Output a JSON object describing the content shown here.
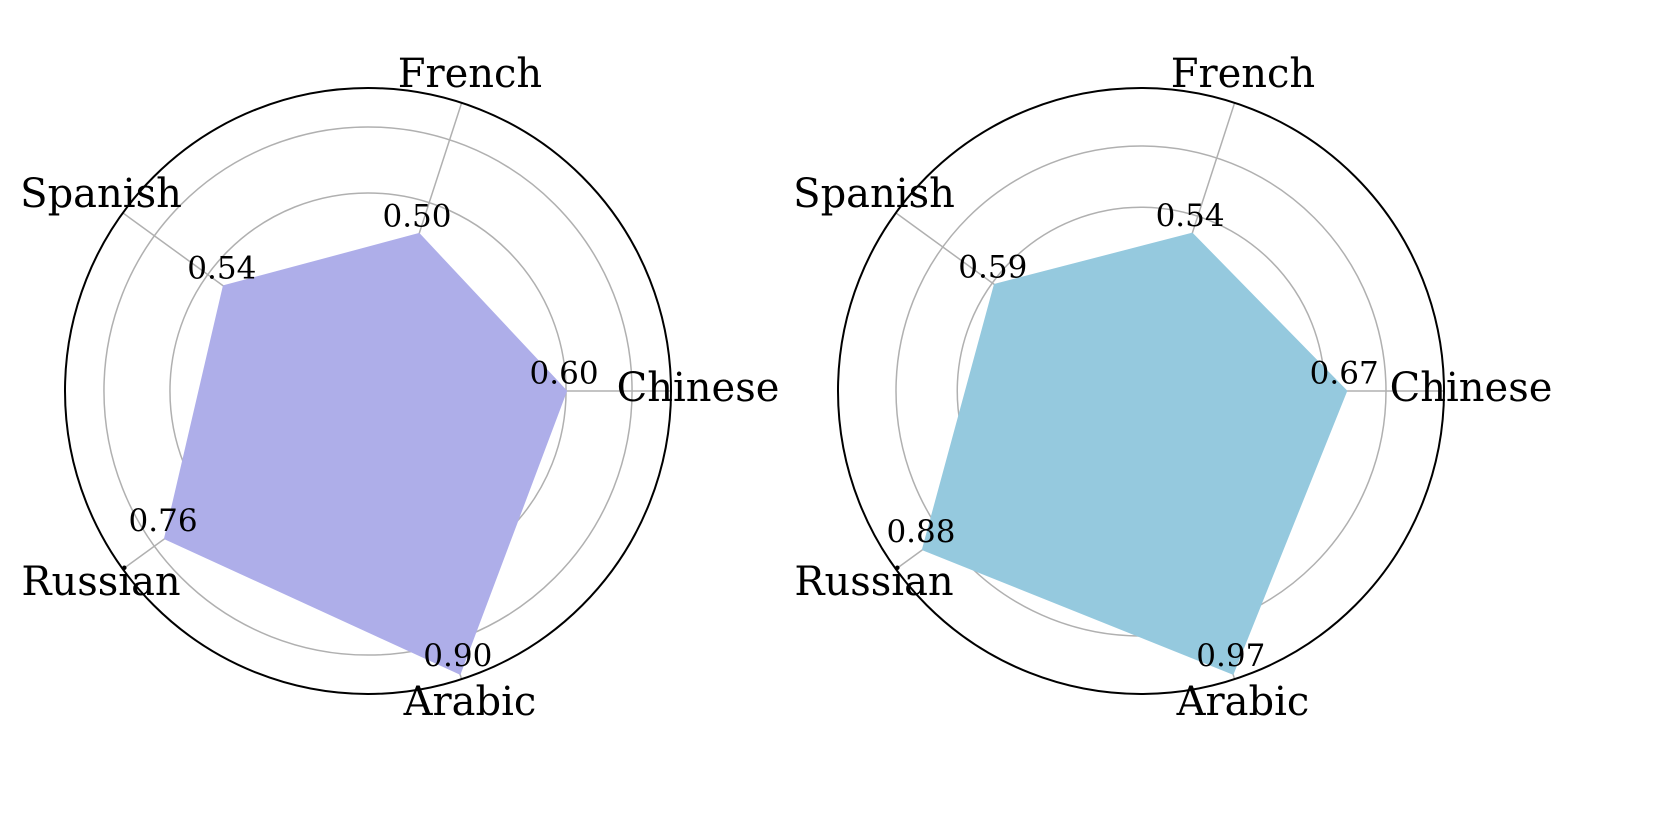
{
  "chart_data": [
    {
      "type": "radar",
      "categories": [
        "Chinese",
        "French",
        "Spanish",
        "Russian",
        "Arabic"
      ],
      "values": [
        0.6,
        0.5,
        0.54,
        0.76,
        0.9
      ],
      "value_labels": [
        "0.60",
        "0.50",
        "0.54",
        "0.76",
        "0.90"
      ],
      "color": "#bbbbfb",
      "ylim": [
        0,
        0.918
      ],
      "yticks": [
        0.2,
        0.4,
        0.6,
        0.8
      ],
      "grid": true
    },
    {
      "type": "radar",
      "categories": [
        "Chinese",
        "French",
        "Spanish",
        "Russian",
        "Arabic"
      ],
      "values": [
        0.67,
        0.54,
        0.59,
        0.88,
        0.97
      ],
      "value_labels": [
        "0.67",
        "0.54",
        "0.59",
        "0.88",
        "0.97"
      ],
      "color": "#a0d8ef",
      "ylim": [
        0,
        0.9894
      ],
      "yticks": [
        0.2,
        0.4,
        0.6,
        0.8
      ],
      "grid": true
    }
  ]
}
